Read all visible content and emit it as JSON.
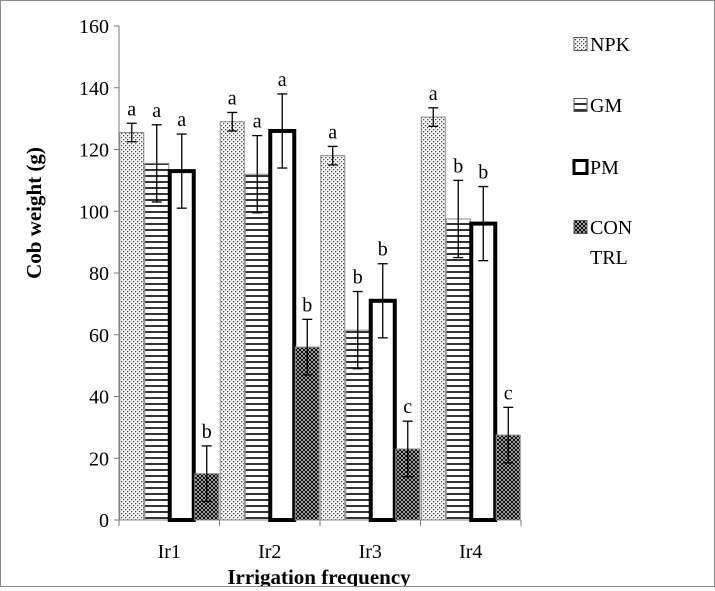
{
  "chart_data": {
    "type": "bar",
    "categories": [
      "Ir1",
      "Ir2",
      "Ir3",
      "Ir4"
    ],
    "series": [
      {
        "name": "NPK",
        "pattern": "dots",
        "values": [
          125.5,
          129,
          118,
          130.5
        ],
        "errors": [
          3,
          3,
          3,
          3
        ],
        "letters": [
          "a",
          "a",
          "a",
          "a"
        ]
      },
      {
        "name": "GM",
        "pattern": "hlines",
        "values": [
          115.5,
          112,
          61.5,
          97.5
        ],
        "errors": [
          12.5,
          12.5,
          12.5,
          12.5
        ],
        "letters": [
          "a",
          "a",
          "b",
          "b"
        ]
      },
      {
        "name": "PM",
        "pattern": "open",
        "values": [
          113,
          126,
          71,
          96
        ],
        "errors": [
          12,
          12,
          12,
          12
        ],
        "letters": [
          "a",
          "a",
          "b",
          "b"
        ]
      },
      {
        "name": "CONTROL",
        "legend_lines": [
          "CON",
          "TRL"
        ],
        "pattern": "checker",
        "values": [
          15,
          56,
          23,
          27.5
        ],
        "errors": [
          9,
          9,
          9,
          9
        ],
        "letters": [
          "b",
          "b",
          "c",
          "c"
        ]
      }
    ],
    "xlabel": "Irrigation frequency",
    "ylabel": "Cob weight (g)",
    "ylim": [
      0,
      160
    ],
    "yticks": [
      0,
      20,
      40,
      60,
      80,
      100,
      120,
      140,
      160
    ],
    "grid": false,
    "legend_position": "right"
  }
}
